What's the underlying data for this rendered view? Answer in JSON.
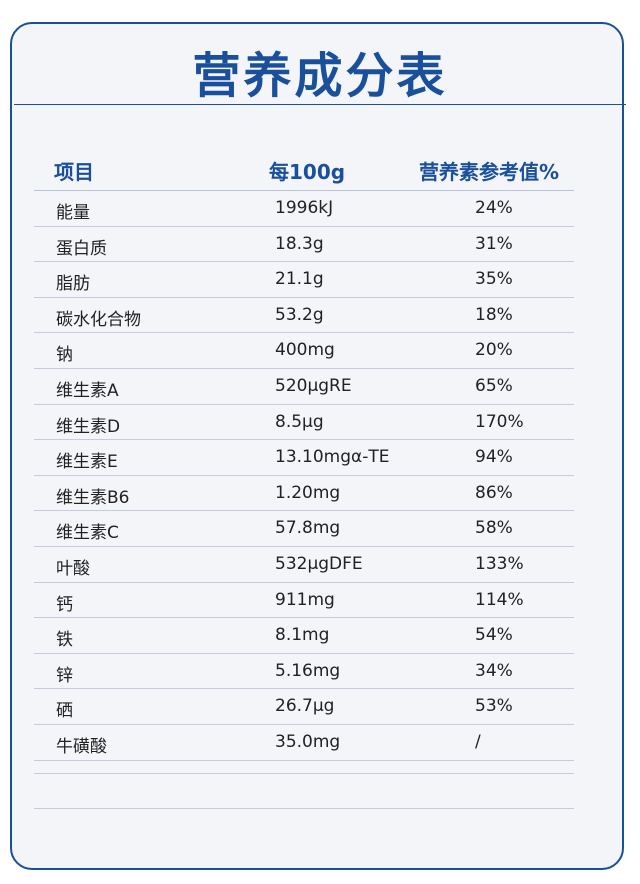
{
  "title": "营养成分表",
  "headers": {
    "item": "项目",
    "per100g": "每100g",
    "nrv": "营养素参考值%"
  },
  "rows": [
    {
      "item": "能量",
      "per100g": "1996kJ",
      "nrv": "24%"
    },
    {
      "item": "蛋白质",
      "per100g": "18.3g",
      "nrv": "31%"
    },
    {
      "item": "脂肪",
      "per100g": "21.1g",
      "nrv": "35%"
    },
    {
      "item": "碳水化合物",
      "per100g": "53.2g",
      "nrv": "18%"
    },
    {
      "item": "钠",
      "per100g": "400mg",
      "nrv": "20%"
    },
    {
      "item": "维生素A",
      "per100g": "520μgRE",
      "nrv": "65%"
    },
    {
      "item": "维生素D",
      "per100g": "8.5μg",
      "nrv": "170%"
    },
    {
      "item": "维生素E",
      "per100g": "13.10mgα-TE",
      "nrv": "94%"
    },
    {
      "item": "维生素B6",
      "per100g": "1.20mg",
      "nrv": "86%"
    },
    {
      "item": "维生素C",
      "per100g": "57.8mg",
      "nrv": "58%"
    },
    {
      "item": "叶酸",
      "per100g": "532μgDFE",
      "nrv": "133%"
    },
    {
      "item": "钙",
      "per100g": "911mg",
      "nrv": "114%"
    },
    {
      "item": "铁",
      "per100g": "8.1mg",
      "nrv": "54%"
    },
    {
      "item": "锌",
      "per100g": "5.16mg",
      "nrv": "34%"
    },
    {
      "item": "硒",
      "per100g": "26.7μg",
      "nrv": "53%"
    },
    {
      "item": "牛磺酸",
      "per100g": "35.0mg",
      "nrv": "/"
    }
  ]
}
